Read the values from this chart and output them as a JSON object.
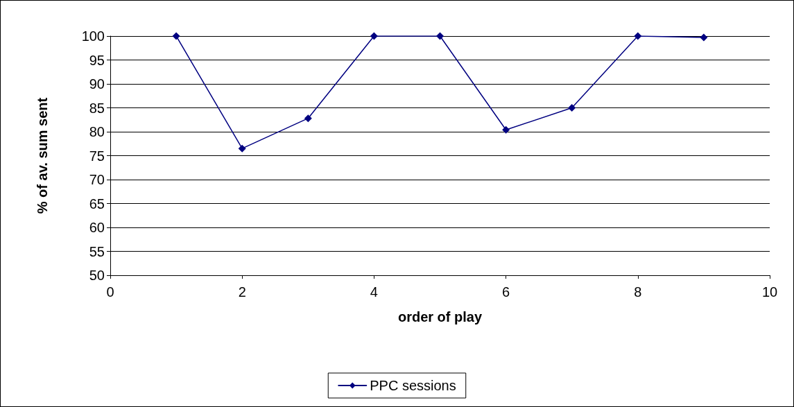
{
  "chart_data": {
    "type": "line",
    "xlabel": "order of play",
    "ylabel": "% of av. sum sent",
    "x": [
      1,
      2,
      3,
      4,
      5,
      6,
      7,
      8,
      9
    ],
    "series": [
      {
        "name": "PPC sessions",
        "color": "#000080",
        "values": [
          100,
          76.5,
          82.8,
          100,
          100,
          80.4,
          85,
          100,
          99.7
        ]
      }
    ],
    "xlim": [
      0,
      10
    ],
    "xticks": [
      0,
      2,
      4,
      6,
      8,
      10
    ],
    "ylim": [
      50,
      100
    ],
    "yticks": [
      50,
      55,
      60,
      65,
      70,
      75,
      80,
      85,
      90,
      95,
      100
    ],
    "grid": "y",
    "legend": "bottom",
    "marker": "diamond",
    "line_style": "solid"
  }
}
